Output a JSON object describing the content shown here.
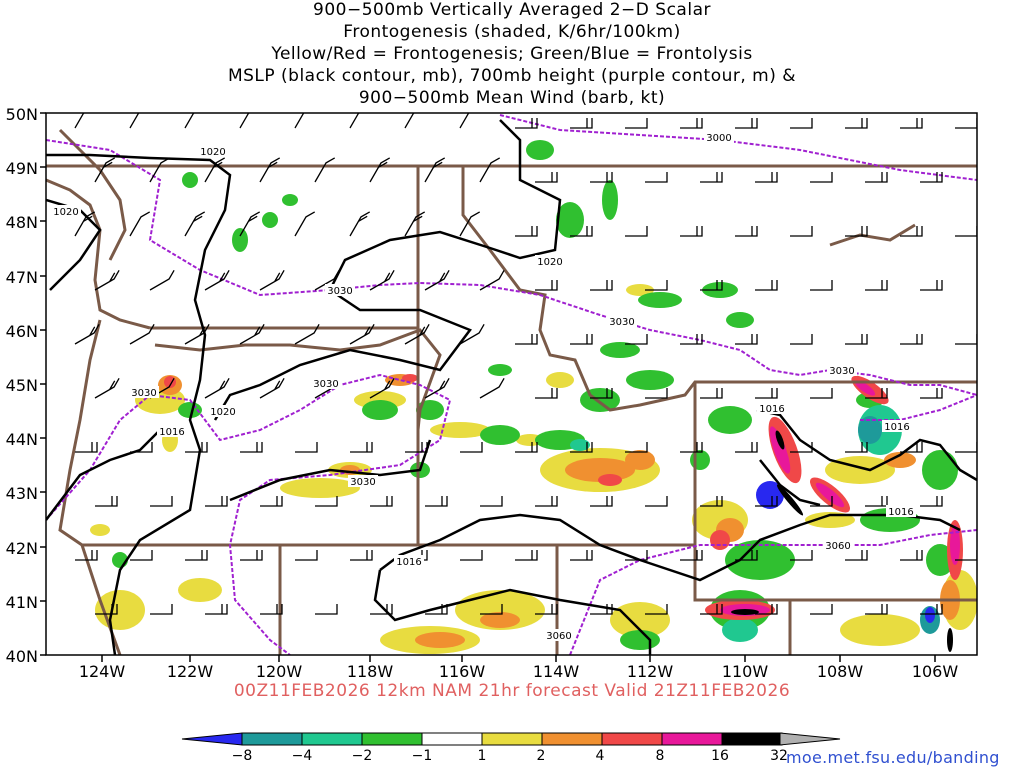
{
  "title_lines": [
    "900−500mb Vertically Averaged 2−D Scalar",
    "Frontogenesis (shaded, K/6hr/100km)",
    "Yellow/Red = Frontogenesis;  Green/Blue = Frontolysis",
    "MSLP (black contour, mb), 700mb height (purple contour, m) &",
    "900−500mb Mean Wind (barb, kt)"
  ],
  "valid_line": "00Z11FEB2026 12km NAM 21hr forecast Valid 21Z11FEB2026",
  "credit": "moe.met.fsu.edu/banding",
  "lat_labels": [
    "50N",
    "49N",
    "48N",
    "47N",
    "46N",
    "45N",
    "44N",
    "43N",
    "42N",
    "41N",
    "40N"
  ],
  "lon_labels": [
    "124W",
    "122W",
    "120W",
    "118W",
    "116W",
    "114W",
    "112W",
    "110W",
    "108W",
    "106W"
  ],
  "mslp_labels": [
    "1020",
    "1020",
    "1020",
    "1020",
    "1016",
    "1016",
    "1016",
    "1016",
    "1016"
  ],
  "height_labels": [
    "3000",
    "3030",
    "3030",
    "3030",
    "3030",
    "3030",
    "3030",
    "3060",
    "3060"
  ],
  "colorbar": {
    "ticks": [
      "−8",
      "−4",
      "−2",
      "−1",
      "1",
      "2",
      "4",
      "8",
      "16",
      "32"
    ],
    "colors": [
      "#2828f0",
      "#1e9a9a",
      "#20c890",
      "#30c030",
      "#ffffff",
      "#e8dc40",
      "#f09030",
      "#f04848",
      "#e8189a",
      "#000000",
      "#b0b0b0"
    ]
  },
  "colors": {
    "mslp": "#000000",
    "height": "#a020d0",
    "borders": "#7a5a48",
    "barbs": "#000000"
  }
}
